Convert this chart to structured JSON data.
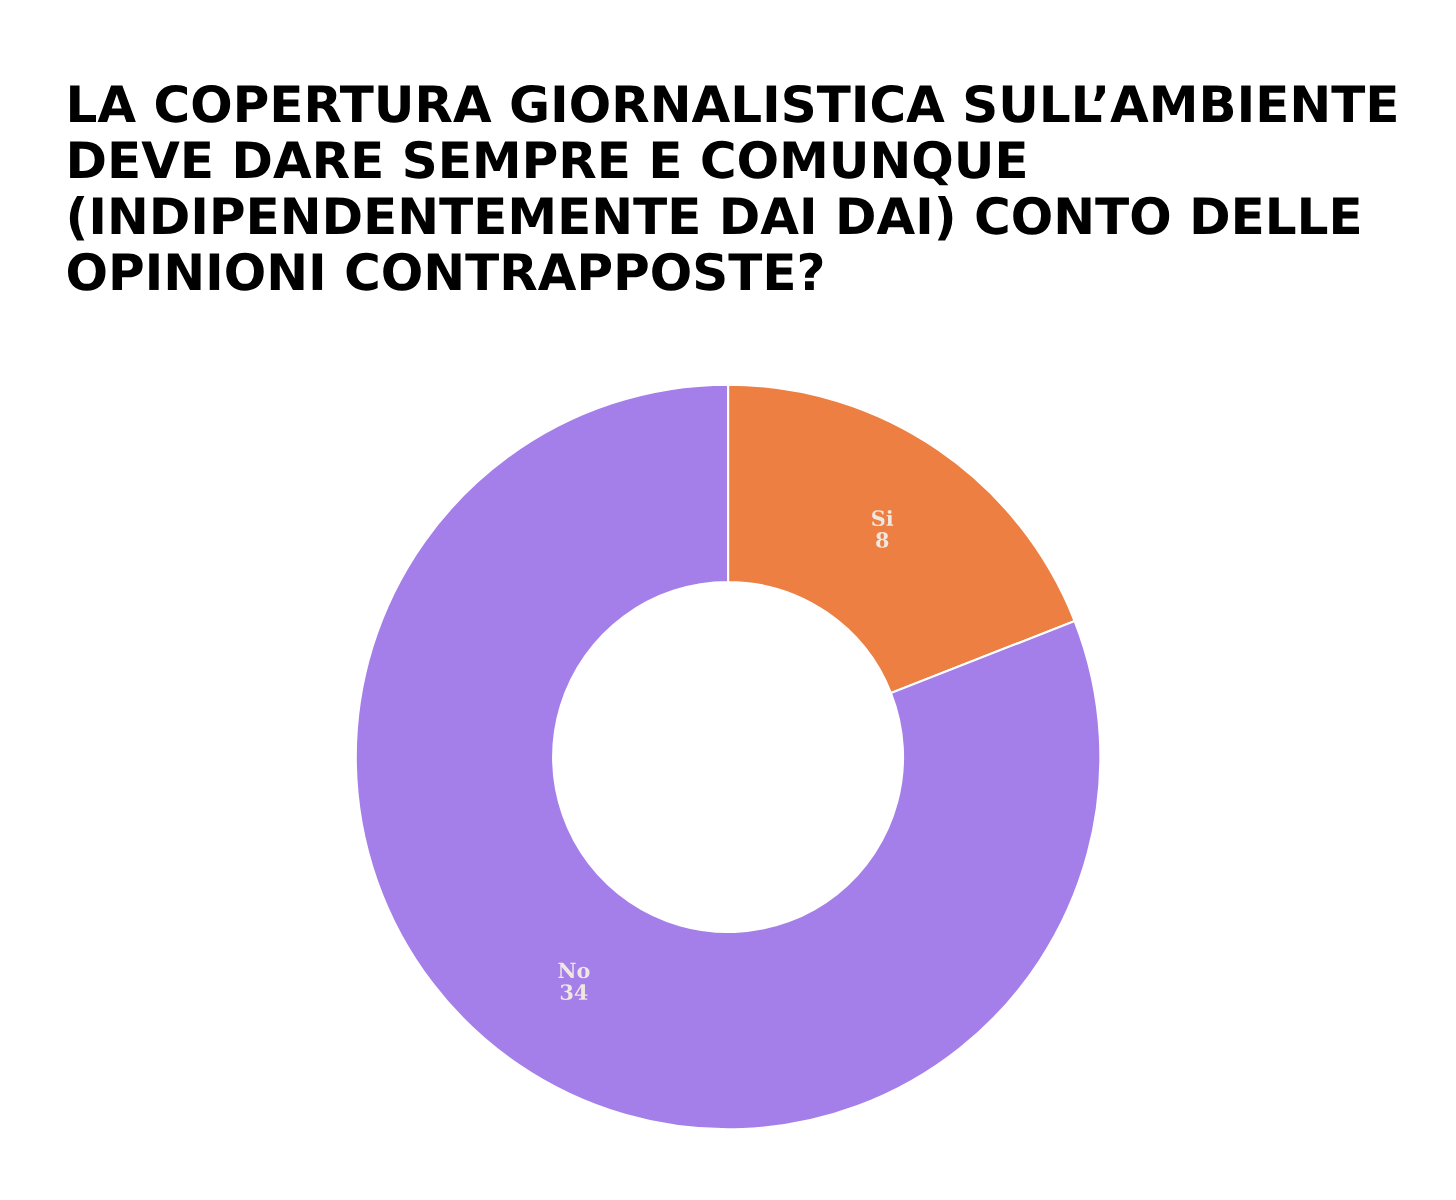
{
  "chart_data": {
    "type": "donut",
    "title": "LA COPERTURA GIORNALISTICA SULL’AMBIENTE DEVE DARE SEMPRE E COMUNQUE (INDIPENDENTEMENTE DAI DAI) CONTO DELLE OPINIONI CONTRAPPOSTE?",
    "categories": [
      "Si",
      "No"
    ],
    "values": [
      8,
      34
    ],
    "colors": [
      "#ec7f41",
      "#a57fe9"
    ],
    "data_labels": true,
    "legend": false
  }
}
